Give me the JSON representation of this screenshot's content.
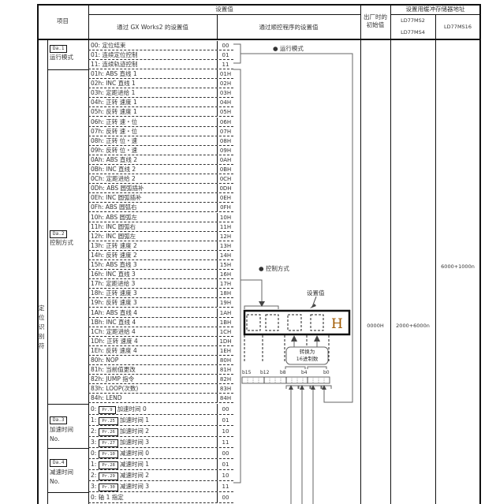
{
  "header": {
    "item": "项目",
    "setting_value": "设置值",
    "gx_works": "通过 GX Works2 的设置值",
    "sequence": "通过顺控程序的设置值",
    "default_line1": "出厂时的",
    "default_line2": "初始值",
    "buffer_address": "设置用缓冲存储器地址",
    "model_a1": "LD77MS2",
    "model_a2": "LD77MS4",
    "model_b": "LD77MS16"
  },
  "group_label": "定位识别符",
  "da1": {
    "tag": "Da.1",
    "name": "运行模式",
    "rows": [
      {
        "label": "00: 定位结束",
        "value": "00"
      },
      {
        "label": "01: 连续定位控制",
        "value": "01"
      },
      {
        "label": "11: 连续轨迹控制",
        "value": "11"
      }
    ]
  },
  "da2": {
    "tag": "Da.2",
    "name": "控制方式",
    "rows": [
      {
        "label": "01h: ABS 直线 1",
        "value": "01H"
      },
      {
        "label": "02h: INC 直线 1",
        "value": "02H"
      },
      {
        "label": "03h: 定距进给 1",
        "value": "03H"
      },
      {
        "label": "04h: 正转 速度 1",
        "value": "04H"
      },
      {
        "label": "05h: 反转 速度 1",
        "value": "05H"
      },
      {
        "label": "06h: 正转 速・位",
        "value": "06H"
      },
      {
        "label": "07h: 反转 速・位",
        "value": "07H"
      },
      {
        "label": "08h: 正转 位・速",
        "value": "08H"
      },
      {
        "label": "09h: 反转 位・速",
        "value": "09H"
      },
      {
        "label": "0Ah: ABS 直线 2",
        "value": "0AH"
      },
      {
        "label": "0Bh: INC 直线 2",
        "value": "0BH"
      },
      {
        "label": "0Ch: 定距进给 2",
        "value": "0CH"
      },
      {
        "label": "0Dh: ABS 圆弧插补",
        "value": "0DH"
      },
      {
        "label": "0Eh: INC 圆弧插补",
        "value": "0EH"
      },
      {
        "label": "0Fh: ABS 圆弧右",
        "value": "0FH"
      },
      {
        "label": "10h: ABS 圆弧左",
        "value": "10H"
      },
      {
        "label": "11h: INC 圆弧右",
        "value": "11H"
      },
      {
        "label": "12h: INC 圆弧左",
        "value": "12H"
      },
      {
        "label": "13h: 正转 速度 2",
        "value": "13H"
      },
      {
        "label": "14h: 反转 速度 2",
        "value": "14H"
      },
      {
        "label": "15h: ABS 直线 3",
        "value": "15H"
      },
      {
        "label": "16h: INC 直线 3",
        "value": "16H"
      },
      {
        "label": "17h: 定距进给 3",
        "value": "17H"
      },
      {
        "label": "18h: 正转 速度 3",
        "value": "18H"
      },
      {
        "label": "19h: 反转 速度 3",
        "value": "19H"
      },
      {
        "label": "1Ah: ABS 直线 4",
        "value": "1AH"
      },
      {
        "label": "1Bh: INC 直线 4",
        "value": "1BH"
      },
      {
        "label": "1Ch: 定距进给 4",
        "value": "1CH"
      },
      {
        "label": "1Dh: 正转 速度 4",
        "value": "1DH"
      },
      {
        "label": "1Eh: 反转 速度 4",
        "value": "1EH"
      },
      {
        "label": "80h: NOP",
        "value": "80H"
      },
      {
        "label": "81h: 当前值更改",
        "value": "81H"
      },
      {
        "label": "82h: JUMP 指令",
        "value": "82H"
      },
      {
        "label": "83h: LOOP(次数)",
        "value": "83H"
      },
      {
        "label": "84h: LEND",
        "value": "84H"
      }
    ]
  },
  "da3": {
    "tag": "Da.3",
    "name": "加速时间",
    "name2": "No.",
    "rows": [
      {
        "prefix": "0:",
        "pr": "Pr.9",
        "label": "加速时间 0",
        "value": "00"
      },
      {
        "prefix": "1:",
        "pr": "Pr.25",
        "label": "加速时间 1",
        "value": "01"
      },
      {
        "prefix": "2:",
        "pr": "Pr.26",
        "label": "加速时间 2",
        "value": "10"
      },
      {
        "prefix": "3:",
        "pr": "Pr.27",
        "label": "加速时间 3",
        "value": "11"
      }
    ]
  },
  "da4": {
    "tag": "Da.4",
    "name": "减速时间",
    "name2": "No.",
    "rows": [
      {
        "prefix": "0:",
        "pr": "Pr.10",
        "label": "减速时间 0",
        "value": "00"
      },
      {
        "prefix": "1:",
        "pr": "Pr.28",
        "label": "减速时间 1",
        "value": "01"
      },
      {
        "prefix": "2:",
        "pr": "Pr.29",
        "label": "减速时间 2",
        "value": "10"
      },
      {
        "prefix": "3:",
        "pr": "Pr.30",
        "label": "减速时间 3",
        "value": "11"
      }
    ]
  },
  "da5_partial": {
    "rows": [
      {
        "label": "0: 轴 1 指定",
        "value": "00"
      }
    ]
  },
  "defaults": {
    "initial": "0000H",
    "addr_a": "2000+6000n",
    "addr_b": "6000+1000n"
  },
  "diagram": {
    "run_mode": "● 运行模式",
    "control_method": "● 控制方式",
    "setting_value": "设置值",
    "hex_suffix": "H",
    "convert_line1": "转换为",
    "convert_line2": "16进制数",
    "bits": [
      "b15",
      "b12",
      "b8",
      "b4",
      "b0"
    ]
  }
}
